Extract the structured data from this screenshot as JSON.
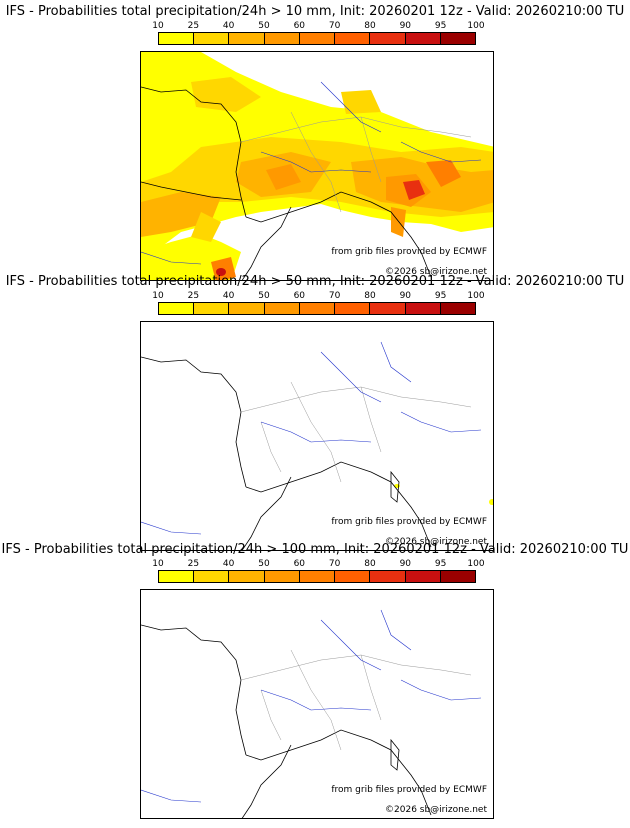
{
  "colorbar": {
    "ticks": [
      "10",
      "25",
      "40",
      "50",
      "60",
      "70",
      "80",
      "90",
      "95",
      "100"
    ],
    "colors": [
      "#ffff00",
      "#ffd700",
      "#ffb300",
      "#ff9900",
      "#ff7f00",
      "#ff6000",
      "#e83010",
      "#c81010",
      "#9a0000",
      "#6a0000"
    ]
  },
  "credits": {
    "source": "from grib files provided by ECMWF",
    "copyright": "©2026 sb@irizone.net"
  },
  "panels": [
    {
      "title": "IFS - Probabilities total precipitation/24h > 10 mm, Init: 20260201 12z - Valid: 20260210:00 TU",
      "threshold_mm": 10
    },
    {
      "title": "IFS - Probabilities total precipitation/24h > 50 mm, Init: 20260201 12z - Valid: 20260210:00 TU",
      "threshold_mm": 50
    },
    {
      "title": "IFS - Probabilities total precipitation/24h > 100 mm, Init: 20260201 12z - Valid: 20260210:00 TU",
      "threshold_mm": 100
    }
  ]
}
